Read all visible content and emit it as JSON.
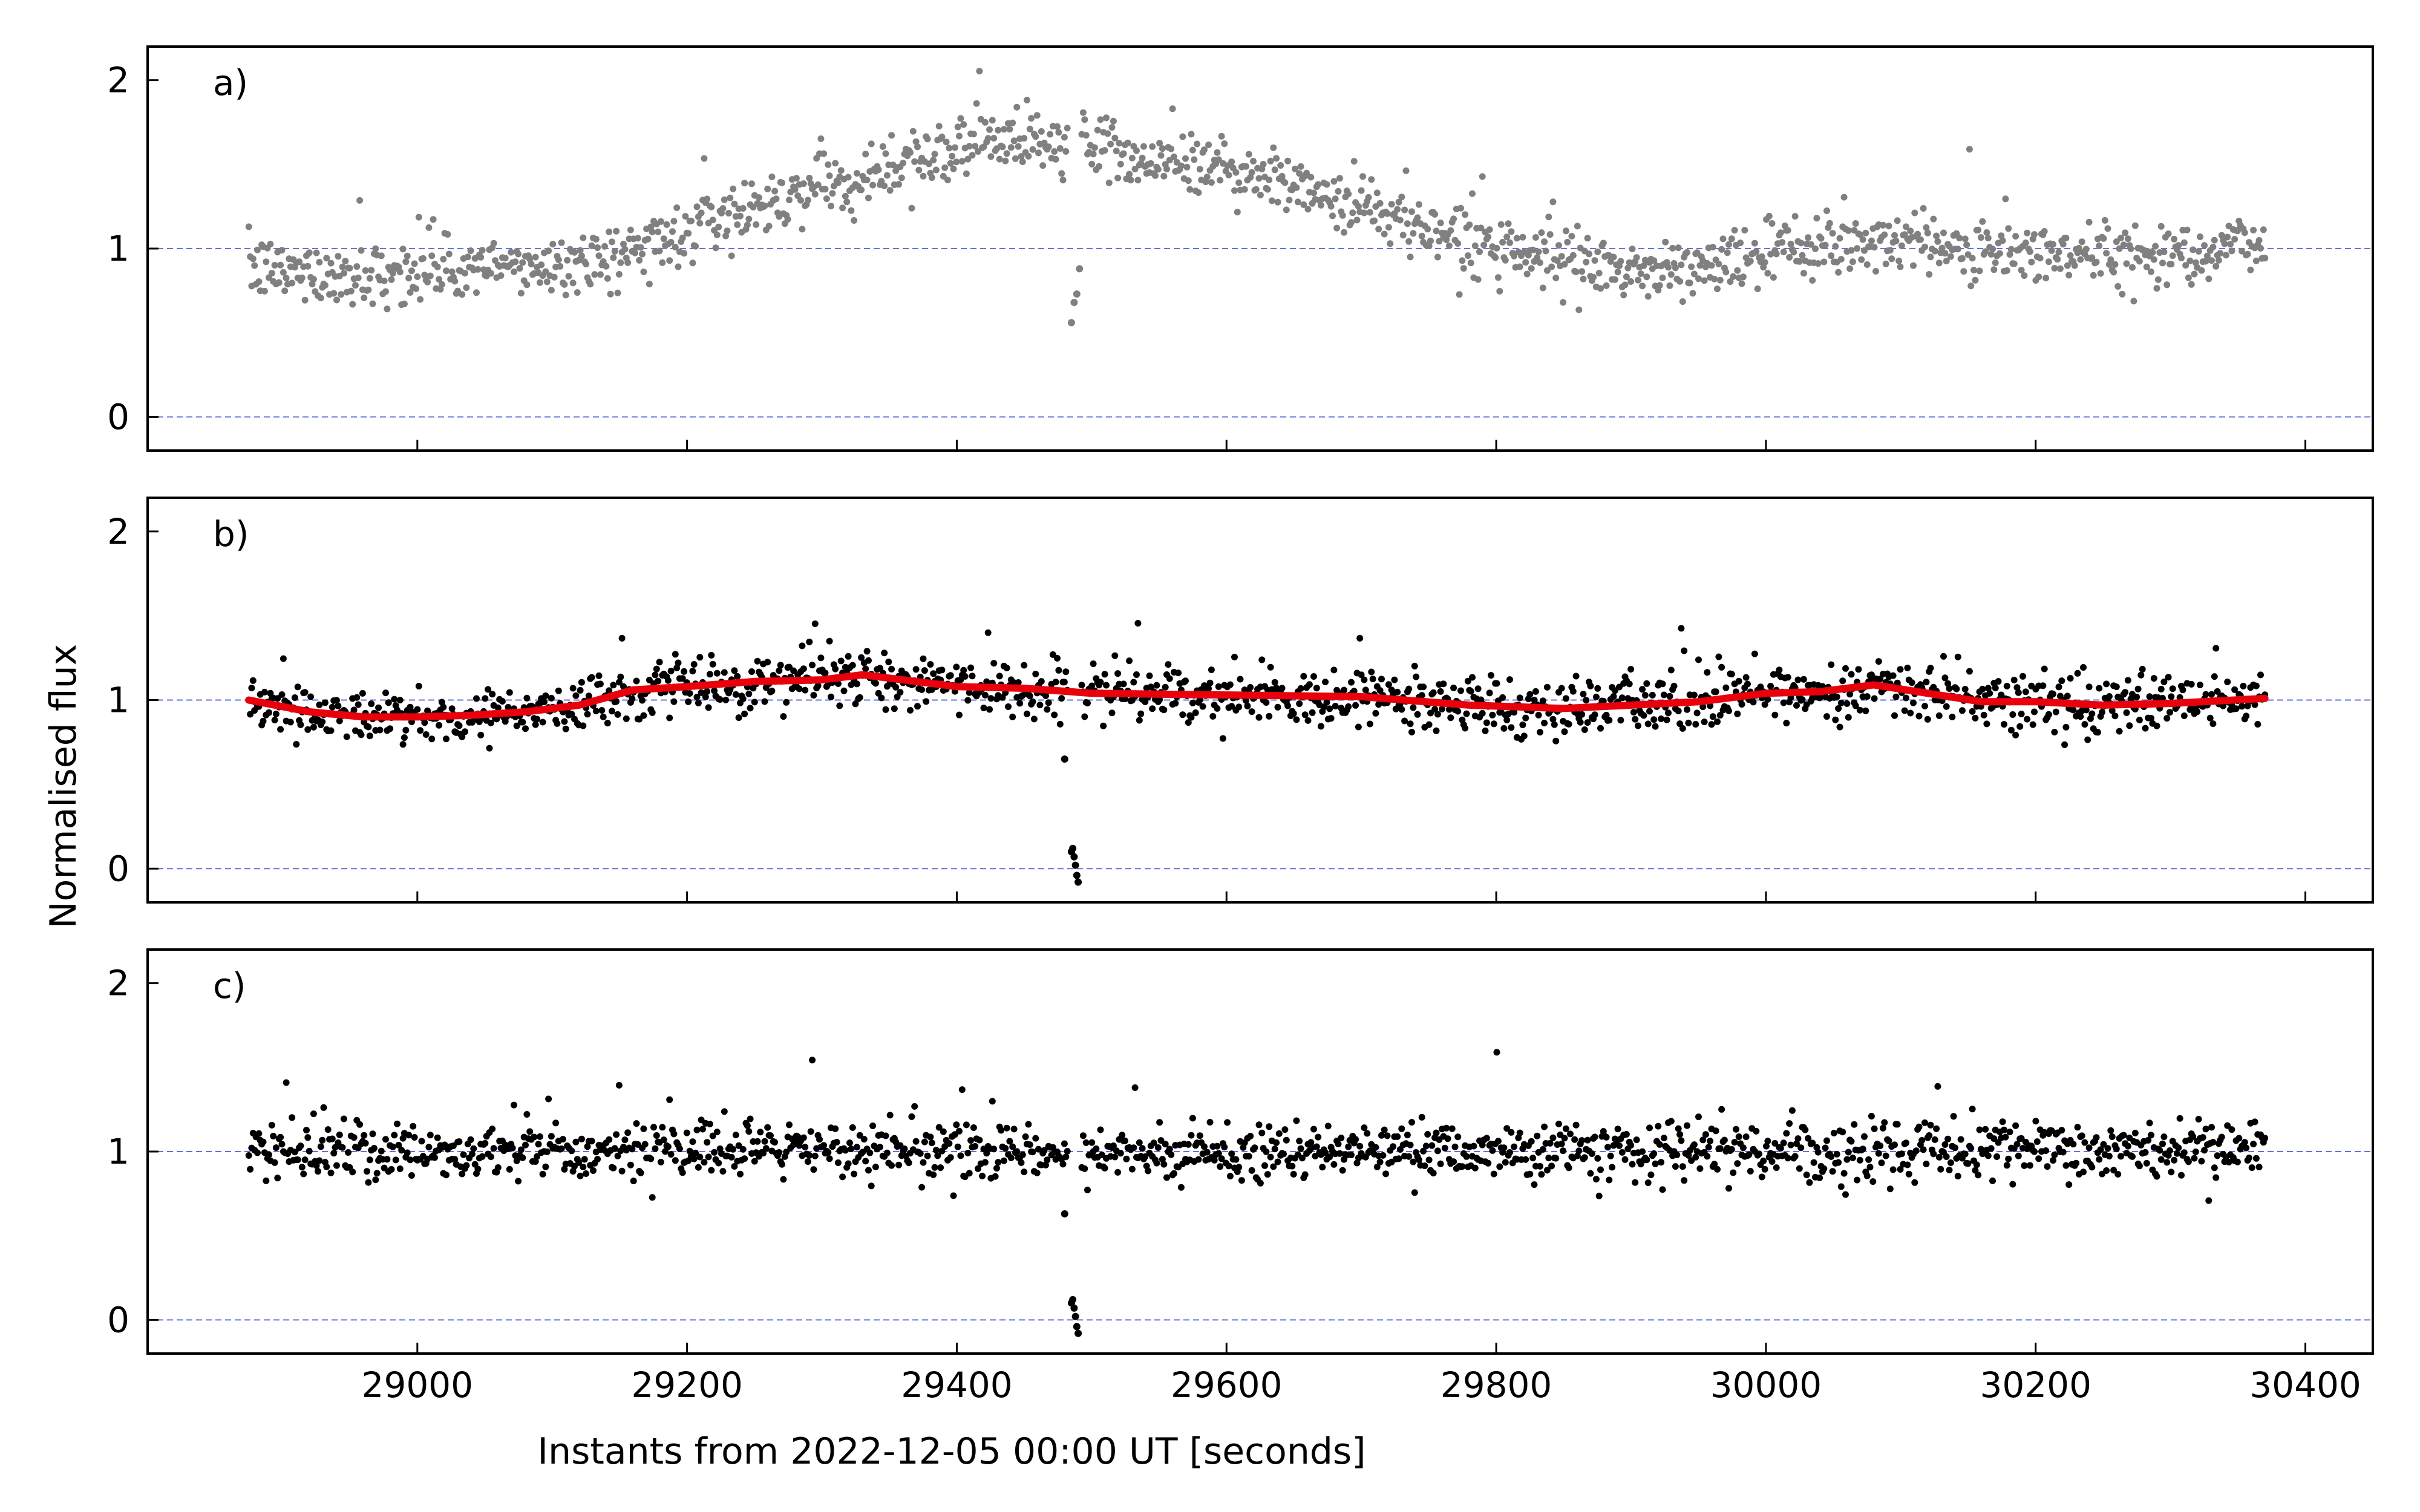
{
  "figure": {
    "ylabel": "Normalised flux",
    "xlabel": "Instants from 2022-12-05 00:00 UT [seconds]"
  },
  "chart_data": [
    {
      "type": "scatter",
      "panel_label": "a)",
      "xlim": [
        28800,
        30450
      ],
      "ylim": [
        -0.2,
        2.2
      ],
      "xticks": [
        29000,
        29200,
        29400,
        29600,
        29800,
        30000,
        30200,
        30400
      ],
      "xtick_labels_shown": false,
      "yticks": [
        0,
        1,
        2
      ],
      "reference_lines": [
        0,
        1
      ],
      "point_color": "#808080",
      "x_range": [
        28875,
        30370
      ],
      "trend": {
        "x": [
          28875,
          28950,
          29000,
          29050,
          29100,
          29150,
          29200,
          29250,
          29300,
          29350,
          29400,
          29430,
          29460,
          29500,
          29550,
          29600,
          29650,
          29700,
          29750,
          29800,
          29850,
          29900,
          29950,
          30000,
          30050,
          30100,
          30150,
          30200,
          30250,
          30300,
          30370
        ],
        "y": [
          0.88,
          0.84,
          0.86,
          0.88,
          0.9,
          0.96,
          1.1,
          1.25,
          1.38,
          1.48,
          1.6,
          1.66,
          1.62,
          1.6,
          1.52,
          1.48,
          1.38,
          1.25,
          1.12,
          1.02,
          0.92,
          0.86,
          0.88,
          0.97,
          1.02,
          1.06,
          1.0,
          0.97,
          0.96,
          0.98,
          1.03
        ]
      },
      "scatter_sd": 0.09,
      "notable_points": [
        {
          "x": 29485,
          "y": 0.56
        },
        {
          "x": 29487,
          "y": 0.68
        },
        {
          "x": 29489,
          "y": 0.73
        },
        {
          "x": 29491,
          "y": 0.88
        }
      ]
    },
    {
      "type": "scatter",
      "panel_label": "b)",
      "xlim": [
        28800,
        30450
      ],
      "ylim": [
        -0.2,
        2.2
      ],
      "xticks": [
        29000,
        29200,
        29400,
        29600,
        29800,
        30000,
        30200,
        30400
      ],
      "xtick_labels_shown": false,
      "yticks": [
        0,
        1,
        2
      ],
      "reference_lines": [
        0,
        1
      ],
      "point_color": "#000000",
      "fit_color": "#e8000b",
      "x_range": [
        28875,
        30370
      ],
      "trend": {
        "x": [
          28875,
          28920,
          28960,
          29000,
          29040,
          29080,
          29120,
          29160,
          29200,
          29250,
          29300,
          29330,
          29360,
          29400,
          29450,
          29500,
          29600,
          29700,
          29780,
          29850,
          29900,
          29950,
          30000,
          30040,
          30080,
          30120,
          30160,
          30200,
          30250,
          30300,
          30370
        ],
        "y": [
          1.0,
          0.93,
          0.9,
          0.9,
          0.91,
          0.93,
          0.97,
          1.06,
          1.08,
          1.11,
          1.12,
          1.15,
          1.12,
          1.08,
          1.07,
          1.04,
          1.03,
          1.02,
          0.97,
          0.95,
          0.97,
          0.99,
          1.04,
          1.05,
          1.09,
          1.04,
          0.99,
          0.99,
          0.97,
          0.98,
          1.01
        ]
      },
      "scatter_sd": 0.085,
      "notable_points": [
        {
          "x": 29480,
          "y": 0.65
        },
        {
          "x": 29485,
          "y": 0.1
        },
        {
          "x": 29486,
          "y": 0.12
        },
        {
          "x": 29487,
          "y": 0.07
        },
        {
          "x": 29488,
          "y": 0.02
        },
        {
          "x": 29489,
          "y": -0.04
        },
        {
          "x": 29490,
          "y": -0.08
        }
      ]
    },
    {
      "type": "scatter",
      "panel_label": "c)",
      "xlim": [
        28800,
        30450
      ],
      "ylim": [
        -0.2,
        2.2
      ],
      "xticks": [
        29000,
        29200,
        29400,
        29600,
        29800,
        30000,
        30200,
        30400
      ],
      "xtick_labels_shown": true,
      "yticks": [
        0,
        1,
        2
      ],
      "reference_lines": [
        0,
        1
      ],
      "point_color": "#000000",
      "x_range": [
        28875,
        30370
      ],
      "trend": {
        "x": [
          28875,
          30370
        ],
        "y": [
          1.0,
          1.0
        ]
      },
      "scatter_sd": 0.085,
      "notable_points": [
        {
          "x": 29480,
          "y": 0.63
        },
        {
          "x": 29485,
          "y": 0.1
        },
        {
          "x": 29486,
          "y": 0.12
        },
        {
          "x": 29487,
          "y": 0.07
        },
        {
          "x": 29488,
          "y": 0.02
        },
        {
          "x": 29489,
          "y": -0.04
        },
        {
          "x": 29490,
          "y": -0.08
        }
      ]
    }
  ]
}
